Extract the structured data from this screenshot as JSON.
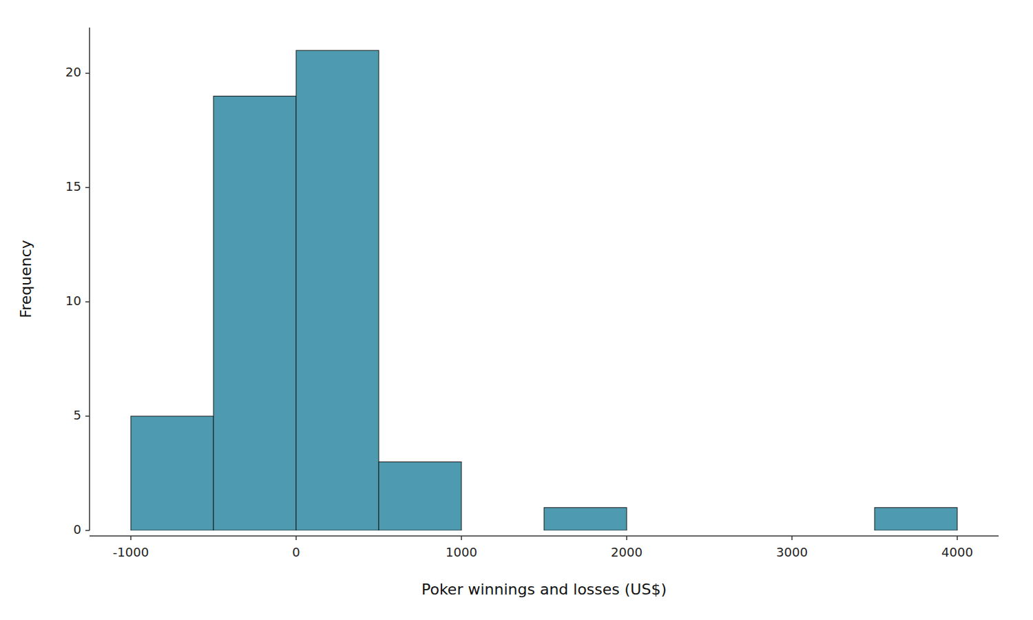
{
  "chart_data": {
    "type": "histogram",
    "xlabel": "Poker winnings and losses (US$)",
    "ylabel": "Frequency",
    "bins": [
      -1000,
      -500,
      0,
      500,
      1000,
      1500,
      2000,
      2500,
      3000,
      3500,
      4000
    ],
    "values": [
      5,
      19,
      21,
      3,
      0,
      1,
      0,
      0,
      0,
      1
    ],
    "color": "#4e9ab0",
    "xlim": [
      -1250,
      4250
    ],
    "ylim": [
      0,
      22
    ],
    "xticks": [
      -1000,
      0,
      1000,
      2000,
      3000,
      4000
    ],
    "yticks": [
      0,
      5,
      10,
      15,
      20
    ],
    "grid": false
  }
}
